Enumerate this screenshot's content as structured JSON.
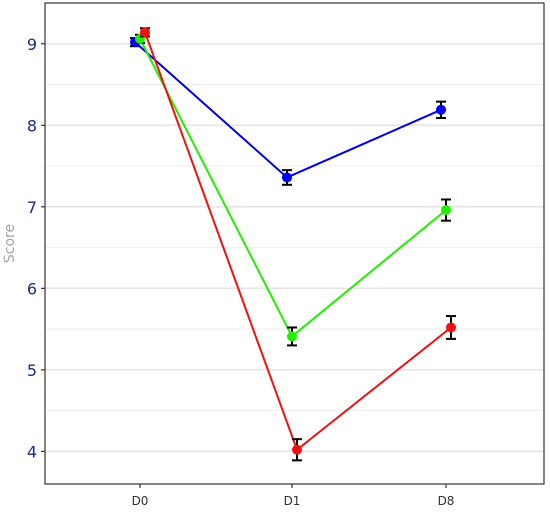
{
  "chart_data": {
    "type": "line",
    "title": "",
    "xlabel": "",
    "ylabel": "Score",
    "categories": [
      "D0",
      "D1",
      "D8"
    ],
    "ylim": [
      3.6,
      9.5
    ],
    "yticks": [
      4,
      5,
      6,
      7,
      8,
      9
    ],
    "grid": true,
    "legend": "none",
    "series": [
      {
        "color": "#0000ee",
        "values": [
          9.02,
          7.36,
          8.19
        ],
        "error": [
          0.05,
          0.09,
          0.1
        ]
      },
      {
        "color": "#22ee00",
        "values": [
          9.06,
          5.41,
          6.96
        ],
        "error": [
          0.05,
          0.11,
          0.13
        ]
      },
      {
        "color": "#ee1111",
        "values": [
          9.14,
          4.02,
          5.52
        ],
        "error": [
          0.05,
          0.13,
          0.14
        ]
      }
    ]
  }
}
